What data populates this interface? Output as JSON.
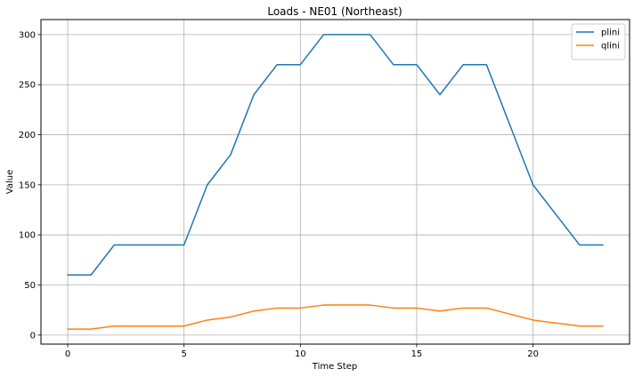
{
  "chart_data": {
    "type": "line",
    "title": "Loads - NE01 (Northeast)",
    "xlabel": "Time Step",
    "ylabel": "Value",
    "xlim": [
      -1.15,
      24.15
    ],
    "ylim": [
      -9,
      315
    ],
    "xticks": [
      0,
      5,
      10,
      15,
      20
    ],
    "yticks": [
      0,
      50,
      100,
      150,
      200,
      250,
      300
    ],
    "grid": true,
    "legend_position": "top-right",
    "x": [
      0,
      1,
      2,
      3,
      4,
      5,
      6,
      7,
      8,
      9,
      10,
      11,
      12,
      13,
      14,
      15,
      16,
      17,
      18,
      19,
      20,
      21,
      22,
      23
    ],
    "series": [
      {
        "name": "plini",
        "color": "#1f77b4",
        "values": [
          60,
          60,
          90,
          90,
          90,
          90,
          150,
          180,
          240,
          270,
          270,
          300,
          300,
          300,
          270,
          270,
          240,
          270,
          270,
          210,
          150,
          120,
          90,
          90
        ]
      },
      {
        "name": "qlini",
        "color": "#ff7f0e",
        "values": [
          6,
          6,
          9,
          9,
          9,
          9,
          15,
          18,
          24,
          27,
          27,
          30,
          30,
          30,
          27,
          27,
          24,
          27,
          27,
          21,
          15,
          12,
          9,
          9
        ]
      }
    ]
  }
}
